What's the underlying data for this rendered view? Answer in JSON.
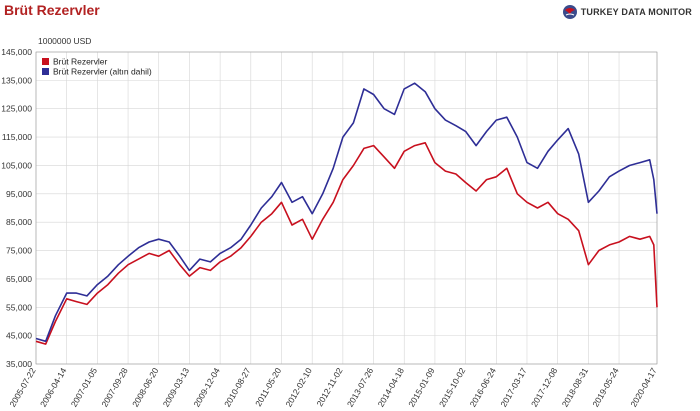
{
  "title": "Brüt Rezervler",
  "brand": {
    "name": "TURKEY DATA MONITOR",
    "icon": "globe-logo-icon"
  },
  "colors": {
    "title": "#b22222",
    "series_red": "#c8101e",
    "series_blue": "#2e2e96"
  },
  "chart_data": {
    "type": "line",
    "unit_label": "1000000 USD",
    "ylim": [
      35000,
      145000
    ],
    "y_ticks": [
      35000,
      45000,
      55000,
      65000,
      75000,
      85000,
      95000,
      105000,
      115000,
      125000,
      135000,
      145000
    ],
    "y_tick_labels": [
      "35,000",
      "45,000",
      "55,000",
      "65,000",
      "75,000",
      "85,000",
      "95,000",
      "105,000",
      "115,000",
      "125,000",
      "135,000",
      "145,000"
    ],
    "x_tick_labels": [
      "2005-07-22",
      "2006-04-14",
      "2007-01-05",
      "2007-09-28",
      "2008-06-20",
      "2009-03-13",
      "2009-12-04",
      "2010-08-27",
      "2011-05-20",
      "2012-02-10",
      "2012-11-02",
      "2013-07-26",
      "2014-04-18",
      "2015-01-09",
      "2015-10-02",
      "2016-06-24",
      "2017-03-17",
      "2017-12-08",
      "2018-08-31",
      "2019-05-24",
      "2020-04-17"
    ],
    "grid": true,
    "legend_position": "top-left",
    "x": [
      "2005-07-22",
      "2005-10-14",
      "2006-01-06",
      "2006-04-14",
      "2006-07-07",
      "2006-10-06",
      "2007-01-05",
      "2007-04-06",
      "2007-07-06",
      "2007-09-28",
      "2007-12-28",
      "2008-03-28",
      "2008-06-20",
      "2008-09-19",
      "2008-12-19",
      "2009-03-13",
      "2009-06-12",
      "2009-09-11",
      "2009-12-04",
      "2010-03-05",
      "2010-06-04",
      "2010-08-27",
      "2010-11-26",
      "2011-02-25",
      "2011-05-20",
      "2011-08-19",
      "2011-11-18",
      "2012-02-10",
      "2012-05-11",
      "2012-08-10",
      "2012-11-02",
      "2013-02-01",
      "2013-05-03",
      "2013-07-26",
      "2013-10-25",
      "2014-01-24",
      "2014-04-18",
      "2014-07-18",
      "2014-10-17",
      "2015-01-09",
      "2015-04-10",
      "2015-07-10",
      "2015-10-02",
      "2016-01-01",
      "2016-04-01",
      "2016-06-24",
      "2016-09-23",
      "2016-12-23",
      "2017-03-17",
      "2017-06-16",
      "2017-09-15",
      "2017-12-08",
      "2018-03-09",
      "2018-06-08",
      "2018-08-31",
      "2018-11-30",
      "2019-03-01",
      "2019-05-24",
      "2019-08-23",
      "2019-11-22",
      "2020-02-14",
      "2020-03-20",
      "2020-04-17"
    ],
    "series": [
      {
        "name": "Brüt Rezervler",
        "color": "#c8101e",
        "values": [
          43000,
          42000,
          50000,
          58000,
          57000,
          56000,
          60000,
          63000,
          67000,
          70000,
          72000,
          74000,
          73000,
          75000,
          70000,
          66000,
          69000,
          68000,
          71000,
          73000,
          76000,
          80000,
          85000,
          88000,
          92000,
          84000,
          86000,
          79000,
          86000,
          92000,
          100000,
          105000,
          111000,
          112000,
          108000,
          104000,
          110000,
          112000,
          113000,
          106000,
          103000,
          102000,
          99000,
          96000,
          100000,
          101000,
          104000,
          95000,
          92000,
          90000,
          92000,
          88000,
          86000,
          82000,
          70000,
          75000,
          77000,
          78000,
          80000,
          79000,
          80000,
          77000,
          55000
        ]
      },
      {
        "name": "Brüt Rezervler (altın dahil)",
        "color": "#2e2e96",
        "values": [
          44000,
          43000,
          52000,
          60000,
          60000,
          59000,
          63000,
          66000,
          70000,
          73000,
          76000,
          78000,
          79000,
          78000,
          73000,
          68000,
          72000,
          71000,
          74000,
          76000,
          79000,
          84000,
          90000,
          94000,
          99000,
          92000,
          94000,
          88000,
          95000,
          104000,
          115000,
          120000,
          132000,
          130000,
          125000,
          123000,
          132000,
          134000,
          131000,
          125000,
          121000,
          119000,
          117000,
          112000,
          117000,
          121000,
          122000,
          115000,
          106000,
          104000,
          110000,
          114000,
          118000,
          109000,
          92000,
          96000,
          101000,
          103000,
          105000,
          106000,
          107000,
          100000,
          88000
        ]
      }
    ]
  }
}
